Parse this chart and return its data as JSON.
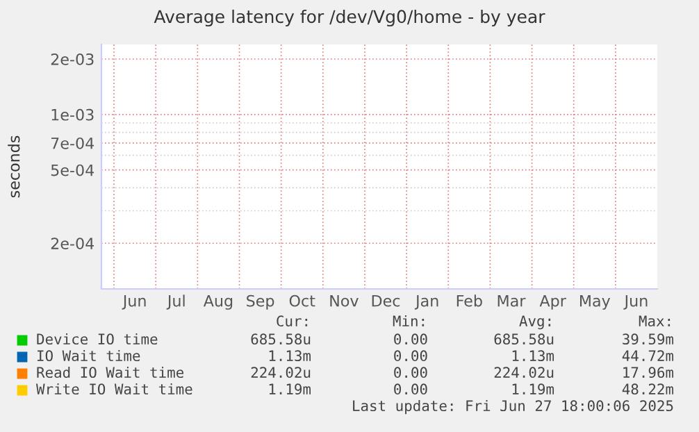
{
  "chart_data": {
    "type": "line",
    "title": "Average latency for /dev/Vg0/home - by year",
    "ylabel": "seconds",
    "categories": [
      "Jun",
      "Jul",
      "Aug",
      "Sep",
      "Oct",
      "Nov",
      "Dec",
      "Jan",
      "Feb",
      "Mar",
      "Apr",
      "May",
      "Jun"
    ],
    "series": [
      {
        "name": "Device IO time",
        "color": "#00cc00",
        "values": [
          null,
          null,
          null,
          null,
          null,
          null,
          null,
          null,
          null,
          null,
          null,
          null,
          null
        ]
      },
      {
        "name": "IO Wait time",
        "color": "#0066b3",
        "values": [
          null,
          null,
          null,
          null,
          null,
          null,
          null,
          null,
          null,
          null,
          null,
          null,
          null
        ]
      },
      {
        "name": "Read IO Wait time",
        "color": "#ff8000",
        "values": [
          null,
          null,
          null,
          null,
          null,
          null,
          null,
          null,
          null,
          null,
          null,
          null,
          null
        ]
      },
      {
        "name": "Write IO Wait time",
        "color": "#ffcc00",
        "values": [
          null,
          null,
          null,
          null,
          null,
          null,
          null,
          null,
          null,
          null,
          null,
          null,
          null
        ]
      }
    ],
    "log": "y",
    "ylim": [
      0.000113,
      0.0024
    ],
    "yticks": [
      {
        "value": 0.0002,
        "label": "2e-04"
      },
      {
        "value": 0.0003,
        "label": null
      },
      {
        "value": 0.0004,
        "label": null
      },
      {
        "value": 0.0005,
        "label": "5e-04"
      },
      {
        "value": 0.0006,
        "label": null
      },
      {
        "value": 0.0007,
        "label": "7e-04"
      },
      {
        "value": 0.0008,
        "label": null
      },
      {
        "value": 0.0009,
        "label": null
      },
      {
        "value": 0.001,
        "label": "1e-03"
      },
      {
        "value": 0.002,
        "label": "2e-03"
      }
    ],
    "grid": true,
    "legend": "bottom",
    "annotations": [
      "Cur:",
      "Min:",
      "Avg:",
      "Max:",
      "685.58u",
      "0.00",
      "685.58u",
      "39.59m",
      "1.13m",
      "0.00",
      "1.13m",
      "44.72m",
      "224.02u",
      "0.00",
      "224.02u",
      "17.96m",
      "1.19m",
      "0.00",
      "1.19m",
      "48.22m",
      "Last update: Fri Jun 27 18:00:06 2025"
    ]
  }
}
